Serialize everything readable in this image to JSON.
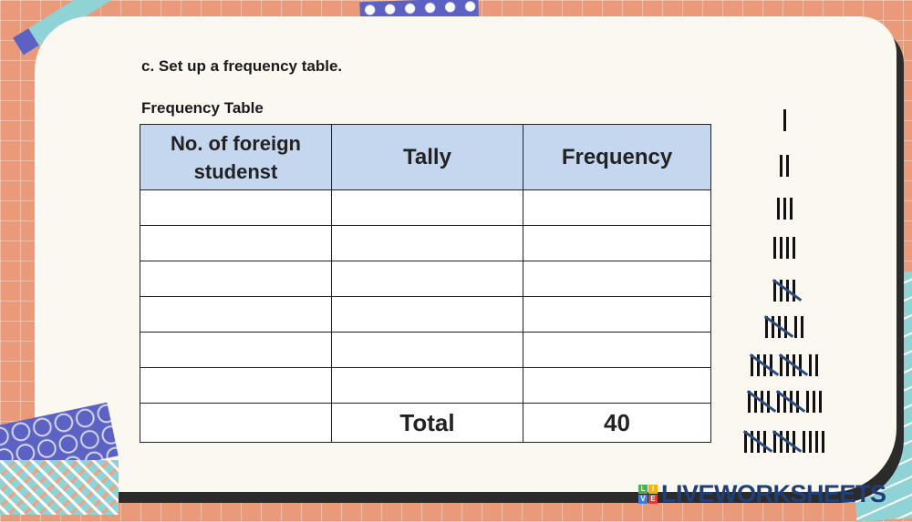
{
  "instruction": "c. Set up a frequency table.",
  "table_title": "Frequency Table",
  "table": {
    "headers": [
      "No. of foreign studenst",
      "Tally",
      "Frequency"
    ],
    "rows": [
      [
        "",
        "",
        ""
      ],
      [
        "",
        "",
        ""
      ],
      [
        "",
        "",
        ""
      ],
      [
        "",
        "",
        ""
      ],
      [
        "",
        "",
        ""
      ],
      [
        "",
        "",
        ""
      ]
    ],
    "total_label": "Total",
    "total_value": "40"
  },
  "tally_reference": [
    1,
    2,
    3,
    4,
    5,
    7,
    12,
    13,
    14
  ],
  "logo": {
    "text": "LIVEWORKSHEETS",
    "badge": [
      "L",
      "I",
      "V",
      "E"
    ]
  },
  "colors": {
    "background": "#ea9a78",
    "card": "#fbf8f1",
    "header": "#c5d7ef",
    "logo": "#1f3f78",
    "slash": "#2a4b7c"
  }
}
